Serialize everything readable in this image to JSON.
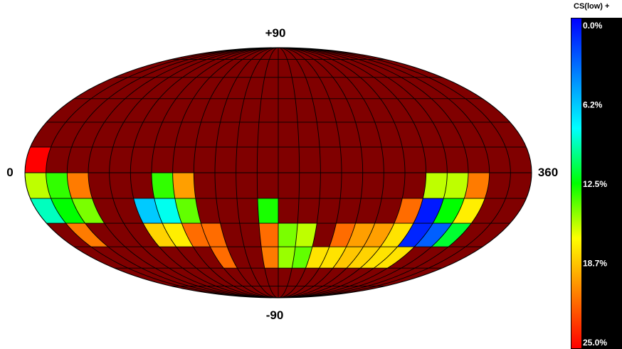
{
  "chart_data": {
    "type": "heatmap",
    "projection": "mollweide",
    "lon_range": [
      0,
      360
    ],
    "lat_range": [
      -90,
      90
    ],
    "lon_bin_deg": 15,
    "lat_bin_deg": 15,
    "grid": true,
    "labels": {
      "top": "+90",
      "bottom": "-90",
      "left": "0",
      "right": "360"
    },
    "background_color": "#800000",
    "colorbar": {
      "title": "CS(low) +",
      "range": [
        0.0,
        25.0
      ],
      "ticks": [
        "0.0%",
        "6.2%",
        "12.5%",
        "18.7%",
        "25.0%"
      ],
      "placement": "right",
      "stops": [
        "#0000ff",
        "#0080ff",
        "#00ffff",
        "#00ff00",
        "#ffff00",
        "#ff8000",
        "#ff0000"
      ]
    },
    "cells": [
      {
        "lon": 7.5,
        "lat": 7.5,
        "value": 25.0
      },
      {
        "lon": 7.5,
        "lat": -7.5,
        "value": 15.6
      },
      {
        "lon": 22.5,
        "lat": -7.5,
        "value": 13.3
      },
      {
        "lon": 37.5,
        "lat": -7.5,
        "value": 21.0
      },
      {
        "lon": 97.5,
        "lat": -7.5,
        "value": 13.3
      },
      {
        "lon": 112.5,
        "lat": -7.5,
        "value": 19.8
      },
      {
        "lon": 292.5,
        "lat": -7.5,
        "value": 15.6
      },
      {
        "lon": 307.5,
        "lat": -7.5,
        "value": 15.6
      },
      {
        "lon": 322.5,
        "lat": -7.5,
        "value": 21.0
      },
      {
        "lon": 7.5,
        "lat": -22.5,
        "value": 9.4
      },
      {
        "lon": 22.5,
        "lat": -22.5,
        "value": 12.5
      },
      {
        "lon": 37.5,
        "lat": -22.5,
        "value": 14.5
      },
      {
        "lon": 82.5,
        "lat": -22.5,
        "value": 6.6
      },
      {
        "lon": 97.5,
        "lat": -22.5,
        "value": 8.6
      },
      {
        "lon": 112.5,
        "lat": -22.5,
        "value": 14.1
      },
      {
        "lon": 172.5,
        "lat": -22.5,
        "value": 12.9
      },
      {
        "lon": 277.5,
        "lat": -22.5,
        "value": 21.5
      },
      {
        "lon": 292.5,
        "lat": -22.5,
        "value": 0.8
      },
      {
        "lon": 307.5,
        "lat": -22.5,
        "value": 12.5
      },
      {
        "lon": 322.5,
        "lat": -22.5,
        "value": 17.2
      },
      {
        "lon": 22.5,
        "lat": -37.5,
        "value": 21.0
      },
      {
        "lon": 82.5,
        "lat": -37.5,
        "value": 18.1
      },
      {
        "lon": 97.5,
        "lat": -37.5,
        "value": 17.2
      },
      {
        "lon": 112.5,
        "lat": -37.5,
        "value": 21.5
      },
      {
        "lon": 127.5,
        "lat": -37.5,
        "value": 21.5
      },
      {
        "lon": 172.5,
        "lat": -37.5,
        "value": 21.5
      },
      {
        "lon": 187.5,
        "lat": -37.5,
        "value": 14.5
      },
      {
        "lon": 202.5,
        "lat": -37.5,
        "value": 15.6
      },
      {
        "lon": 232.5,
        "lat": -37.5,
        "value": 21.5
      },
      {
        "lon": 247.5,
        "lat": -37.5,
        "value": 19.8
      },
      {
        "lon": 262.5,
        "lat": -37.5,
        "value": 19.8
      },
      {
        "lon": 277.5,
        "lat": -37.5,
        "value": 17.6
      },
      {
        "lon": 292.5,
        "lat": -37.5,
        "value": 1.2
      },
      {
        "lon": 307.5,
        "lat": -37.5,
        "value": 3.1
      },
      {
        "lon": 322.5,
        "lat": -37.5,
        "value": 11.7
      },
      {
        "lon": 127.5,
        "lat": -52.5,
        "value": 21.5
      },
      {
        "lon": 172.5,
        "lat": -52.5,
        "value": 21.0
      },
      {
        "lon": 187.5,
        "lat": -52.5,
        "value": 15.0
      },
      {
        "lon": 202.5,
        "lat": -52.5,
        "value": 14.1
      },
      {
        "lon": 217.5,
        "lat": -52.5,
        "value": 17.6
      },
      {
        "lon": 232.5,
        "lat": -52.5,
        "value": 17.6
      },
      {
        "lon": 247.5,
        "lat": -52.5,
        "value": 18.5
      },
      {
        "lon": 262.5,
        "lat": -52.5,
        "value": 18.1
      },
      {
        "lon": 277.5,
        "lat": -52.5,
        "value": 17.6
      },
      {
        "lon": 292.5,
        "lat": -52.5,
        "value": 17.6
      }
    ]
  }
}
